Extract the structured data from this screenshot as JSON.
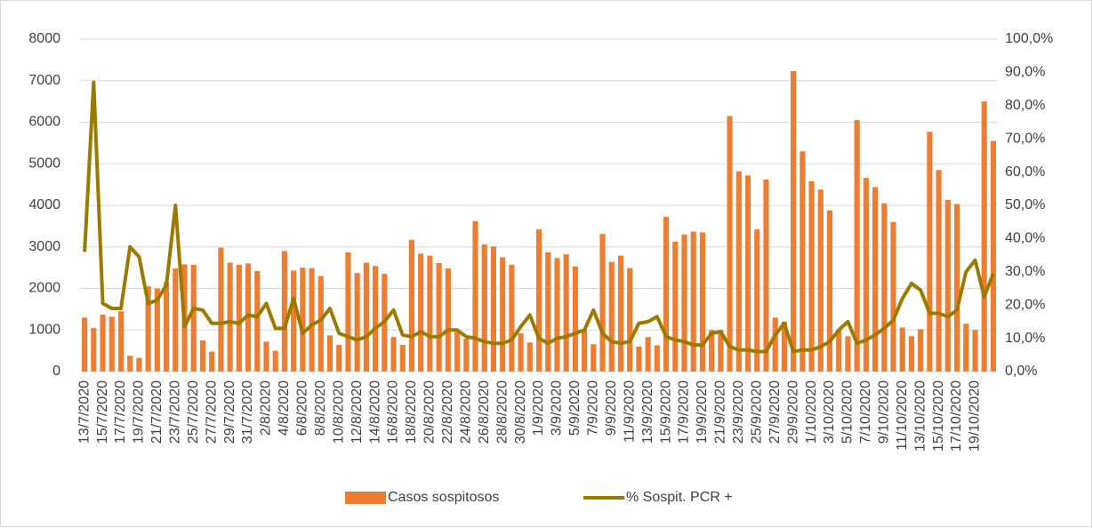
{
  "chart_data": {
    "type": "bar-line",
    "categories": [
      "13/7/2020",
      null,
      "15/7/2020",
      null,
      "17/7/2020",
      null,
      "19/7/2020",
      null,
      "21/7/2020",
      null,
      "23/7/2020",
      null,
      "25/7/2020",
      null,
      "27/7/2020",
      null,
      "29/7/2020",
      null,
      "31/7/2020",
      null,
      "2/8/2020",
      null,
      "4/8/2020",
      null,
      "6/8/2020",
      null,
      "8/8/2020",
      null,
      "10/8/2020",
      null,
      "12/8/2020",
      null,
      "14/8/2020",
      null,
      "16/8/2020",
      null,
      "18/8/2020",
      null,
      "20/8/2020",
      null,
      "22/8/2020",
      null,
      "24/8/2020",
      null,
      "26/8/2020",
      null,
      "28/8/2020",
      null,
      "30/8/2020",
      null,
      "1/9/2020",
      null,
      "3/9/2020",
      null,
      "5/9/2020",
      null,
      "7/9/2020",
      null,
      "9/9/2020",
      null,
      "11/9/2020",
      null,
      "13/9/2020",
      null,
      "15/9/2020",
      null,
      "17/9/2020",
      null,
      "19/9/2020",
      null,
      "21/9/2020",
      null,
      "23/9/2020",
      null,
      "25/9/2020",
      null,
      "27/9/2020",
      null,
      "29/9/2020",
      null,
      "1/10/2020",
      null,
      "3/10/2020",
      null,
      "5/10/2020",
      null,
      "7/10/2020",
      null,
      "9/10/2020",
      null,
      "11/10/2020",
      null,
      "13/10/2020",
      null,
      "15/10/2020",
      null,
      "17/10/2020",
      null,
      "19/10/2020",
      null,
      null
    ],
    "series": [
      {
        "name": "Casos sospitosos",
        "type": "bar",
        "color": "#ed7d31",
        "values": [
          1300,
          1050,
          1370,
          1320,
          1450,
          380,
          330,
          2050,
          2000,
          2150,
          2480,
          2580,
          2570,
          750,
          480,
          2980,
          2620,
          2570,
          2600,
          2420,
          720,
          500,
          2900,
          2430,
          2500,
          2490,
          2300,
          870,
          640,
          2870,
          2370,
          2620,
          2540,
          2350,
          830,
          640,
          3170,
          2840,
          2790,
          2610,
          2480,
          950,
          790,
          3620,
          3060,
          3010,
          2750,
          2570,
          920,
          700,
          3420,
          2870,
          2730,
          2820,
          2530,
          1000,
          660,
          3310,
          2640,
          2790,
          2490,
          600,
          830,
          630,
          3720,
          3130,
          3300,
          3370,
          3350,
          1000,
          1000,
          6150,
          4820,
          4720,
          3420,
          4620,
          1300,
          1200,
          7230,
          5300,
          4580,
          4380,
          3880,
          1000,
          850,
          6050,
          4660,
          4440,
          4050,
          3600,
          1060,
          850,
          1020,
          5770,
          4850,
          4130,
          4030,
          1150,
          1000,
          6500,
          5550
        ]
      },
      {
        "name": "% Sospit. PCR +",
        "type": "line",
        "axis": "y2",
        "color": "#9c7a00",
        "values": [
          36,
          87,
          20.5,
          19,
          19,
          37.5,
          34.5,
          20.5,
          21.5,
          26,
          50,
          13.5,
          19,
          18.5,
          14.5,
          14.5,
          15,
          14.5,
          17,
          16.5,
          20.5,
          13,
          13,
          22,
          11.5,
          14,
          15.5,
          19,
          11.5,
          10.5,
          9.5,
          10.5,
          13,
          15,
          18.5,
          11,
          10.5,
          12,
          10.5,
          10.5,
          12.5,
          12.5,
          10.5,
          10,
          9,
          8.5,
          8.5,
          9.5,
          13.5,
          17,
          10,
          8.5,
          10,
          10.5,
          11.5,
          12.5,
          18.5,
          11.5,
          9,
          8.5,
          9,
          14.5,
          15,
          16.5,
          10.5,
          9.5,
          9,
          8,
          8,
          11.5,
          12,
          7.5,
          6.5,
          6.5,
          6,
          6,
          11,
          14.5,
          6,
          6.5,
          6.5,
          7.5,
          9,
          12.5,
          15,
          8.5,
          9.5,
          11,
          13,
          15.5,
          22,
          26.5,
          24.5,
          17.5,
          17.5,
          16.5,
          18.5,
          30,
          33.5,
          22.5,
          29.5
        ]
      }
    ],
    "ylim": [
      0,
      8000
    ],
    "yticks": [
      0,
      1000,
      2000,
      3000,
      4000,
      5000,
      6000,
      7000,
      8000
    ],
    "y2lim": [
      0,
      100
    ],
    "y2ticks": [
      {
        "value": 0,
        "label": "0,0%"
      },
      {
        "value": 10,
        "label": "10,0%"
      },
      {
        "value": 20,
        "label": "20,0%"
      },
      {
        "value": 30,
        "label": "30,0%"
      },
      {
        "value": 40,
        "label": "40,0%"
      },
      {
        "value": 50,
        "label": "50,0%"
      },
      {
        "value": 60,
        "label": "60,0%"
      },
      {
        "value": 70,
        "label": "70,0%"
      },
      {
        "value": 80,
        "label": "80,0%"
      },
      {
        "value": 90,
        "label": "90,0%"
      },
      {
        "value": 100,
        "label": "100,0%"
      }
    ],
    "grid": true,
    "legend": "bottom"
  }
}
